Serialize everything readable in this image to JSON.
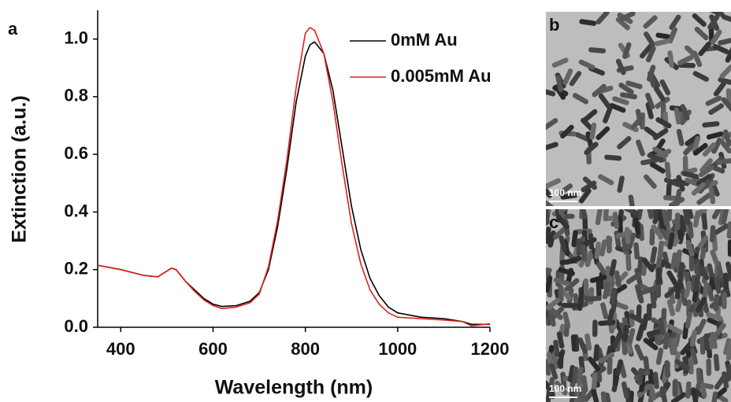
{
  "chart_data": {
    "type": "line",
    "panel_label": "a",
    "x_label": "Wavelength (nm)",
    "y_label": "Extinction (a.u.)",
    "x": [
      350,
      400,
      450,
      480,
      500,
      510,
      520,
      540,
      560,
      580,
      600,
      620,
      650,
      680,
      700,
      720,
      740,
      760,
      780,
      800,
      810,
      820,
      840,
      860,
      880,
      900,
      920,
      940,
      960,
      980,
      1000,
      1050,
      1100,
      1140,
      1160,
      1200
    ],
    "series": [
      {
        "name": "0mM Au",
        "color": "#000000",
        "values": [
          0.215,
          0.2,
          0.18,
          0.175,
          0.195,
          0.205,
          0.2,
          0.16,
          0.13,
          0.1,
          0.08,
          0.072,
          0.075,
          0.09,
          0.12,
          0.2,
          0.35,
          0.55,
          0.78,
          0.94,
          0.98,
          0.99,
          0.95,
          0.82,
          0.62,
          0.42,
          0.27,
          0.17,
          0.11,
          0.07,
          0.05,
          0.035,
          0.03,
          0.02,
          0.01,
          0.01
        ]
      },
      {
        "name": "0.005mM Au",
        "color": "#e0201e",
        "values": [
          0.215,
          0.2,
          0.18,
          0.175,
          0.195,
          0.205,
          0.2,
          0.16,
          0.125,
          0.095,
          0.075,
          0.065,
          0.07,
          0.085,
          0.115,
          0.21,
          0.37,
          0.58,
          0.83,
          1.02,
          1.04,
          1.03,
          0.95,
          0.78,
          0.56,
          0.36,
          0.22,
          0.13,
          0.08,
          0.05,
          0.035,
          0.03,
          0.025,
          0.02,
          0.005,
          0.012
        ]
      }
    ],
    "xlim": [
      350,
      1200
    ],
    "ylim": [
      0,
      1.1
    ],
    "xticks": [
      400,
      600,
      800,
      1000,
      1200
    ],
    "yticks": [
      {
        "value": 0,
        "label": "0.0"
      },
      0.2,
      0.4,
      0.6,
      0.8,
      {
        "value": 1,
        "label": "1.0"
      }
    ],
    "legend": "upper right",
    "grid": false
  },
  "images": [
    {
      "label": "b",
      "scale_bar": "100 nm"
    },
    {
      "label": "c",
      "scale_bar": "100 nm"
    }
  ]
}
